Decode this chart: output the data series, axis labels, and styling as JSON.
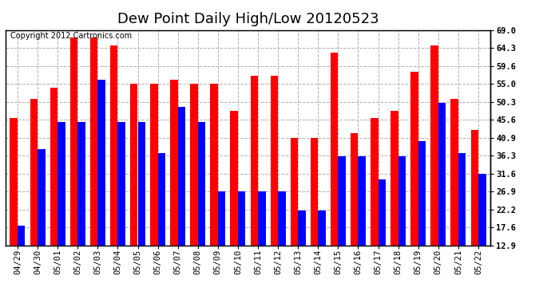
{
  "title": "Dew Point Daily High/Low 20120523",
  "copyright": "Copyright 2012 Cartronics.com",
  "dates": [
    "04/29",
    "04/30",
    "05/01",
    "05/02",
    "05/03",
    "05/04",
    "05/05",
    "05/06",
    "05/07",
    "05/08",
    "05/09",
    "05/10",
    "05/11",
    "05/12",
    "05/13",
    "05/14",
    "05/15",
    "05/16",
    "05/17",
    "05/18",
    "05/19",
    "05/20",
    "05/21",
    "05/22"
  ],
  "high": [
    46.0,
    51.0,
    54.0,
    67.0,
    67.0,
    65.0,
    55.0,
    55.0,
    56.0,
    55.0,
    55.0,
    48.0,
    57.0,
    57.0,
    40.9,
    40.9,
    63.0,
    42.0,
    46.0,
    48.0,
    58.0,
    65.0,
    51.0,
    43.0
  ],
  "low": [
    18.0,
    38.0,
    45.0,
    45.0,
    56.0,
    45.0,
    45.0,
    37.0,
    49.0,
    45.0,
    27.0,
    27.0,
    27.0,
    27.0,
    22.0,
    22.0,
    36.0,
    36.0,
    30.0,
    36.0,
    40.0,
    50.0,
    37.0,
    31.6
  ],
  "ymin": 12.9,
  "ymax": 69.0,
  "yticks": [
    12.9,
    17.6,
    22.2,
    26.9,
    31.6,
    36.3,
    40.9,
    45.6,
    50.3,
    55.0,
    59.6,
    64.3,
    69.0
  ],
  "high_color": "#ff0000",
  "low_color": "#0000ff",
  "background_color": "#ffffff",
  "grid_color": "#b0b0b0",
  "bar_width": 0.38,
  "title_fontsize": 13,
  "tick_fontsize": 7.5,
  "copyright_fontsize": 7
}
